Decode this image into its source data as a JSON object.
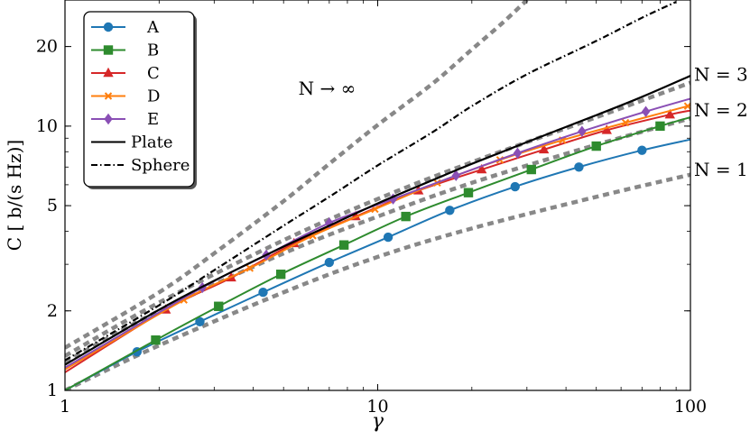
{
  "chart_data": {
    "type": "line",
    "xlabel": "γ",
    "ylabel": "C [ b/(s Hz)]",
    "xscale": "log",
    "yscale": "log",
    "xlim": [
      1,
      100
    ],
    "ylim": [
      1,
      30
    ],
    "x_ticks": [
      {
        "value": 1,
        "label": "1"
      },
      {
        "value": 10,
        "label": "10"
      },
      {
        "value": 100,
        "label": "100"
      }
    ],
    "y_ticks": [
      {
        "value": 1,
        "label": "1"
      },
      {
        "value": 2,
        "label": "2"
      },
      {
        "value": 5,
        "label": "5"
      },
      {
        "value": 10,
        "label": "10"
      },
      {
        "value": 20,
        "label": "20"
      }
    ],
    "legend_position": "top-left",
    "series": [
      {
        "name": "A",
        "color": "#1f77b4",
        "marker": "circle",
        "style": "solid",
        "x": [
          1,
          1.7,
          2.7,
          4.3,
          7,
          10.8,
          17,
          27.5,
          44,
          70,
          100
        ],
        "y": [
          1.0,
          1.4,
          1.82,
          2.35,
          3.05,
          3.8,
          4.8,
          5.9,
          7.0,
          8.1,
          8.9
        ]
      },
      {
        "name": "B",
        "color": "#2e8b2e",
        "marker": "square",
        "style": "solid",
        "x": [
          1,
          1.95,
          3.1,
          4.9,
          7.8,
          12.3,
          19.5,
          31,
          50,
          80,
          100
        ],
        "y": [
          1.0,
          1.55,
          2.08,
          2.75,
          3.55,
          4.55,
          5.6,
          6.85,
          8.4,
          10.0,
          10.8
        ]
      },
      {
        "name": "C",
        "color": "#d62728",
        "marker": "triangle",
        "style": "solid",
        "x": [
          1,
          2.1,
          3.4,
          5.4,
          8.5,
          13.5,
          21.5,
          34,
          54,
          86,
          100
        ],
        "y": [
          1.17,
          2.02,
          2.67,
          3.6,
          4.55,
          5.7,
          6.85,
          8.15,
          9.65,
          11.05,
          11.45
        ]
      },
      {
        "name": "D",
        "color": "#ff7f0e",
        "marker": "x",
        "style": "solid",
        "x": [
          1,
          2.4,
          3.9,
          6.2,
          9.8,
          15.5,
          24.6,
          39,
          62,
          98,
          100
        ],
        "y": [
          1.2,
          2.2,
          2.9,
          3.85,
          4.85,
          6.1,
          7.45,
          8.85,
          10.3,
          11.9,
          12.0
        ]
      },
      {
        "name": "E",
        "color": "#8a4fb5",
        "marker": "diamond",
        "style": "solid",
        "x": [
          1,
          2.75,
          4.4,
          7,
          11.2,
          17.8,
          28,
          45,
          72,
          100
        ],
        "y": [
          1.22,
          2.45,
          3.25,
          4.3,
          5.3,
          6.5,
          7.9,
          9.55,
          11.35,
          12.7
        ]
      },
      {
        "name": "Plate",
        "color": "#000000",
        "marker": "none",
        "style": "solid",
        "x": [
          1,
          2,
          3,
          5,
          7,
          10,
          15,
          20,
          30,
          50,
          70,
          100
        ],
        "y": [
          1.25,
          2.02,
          2.6,
          3.5,
          4.2,
          5.1,
          6.25,
          7.2,
          8.7,
          11.0,
          12.9,
          15.5
        ]
      },
      {
        "name": "Sphere",
        "color": "#000000",
        "marker": "none",
        "style": "dashdot",
        "x": [
          1,
          2,
          3,
          5,
          7,
          10,
          15,
          20,
          30,
          50,
          70,
          90
        ],
        "y": [
          1.3,
          2.1,
          2.85,
          4.2,
          5.4,
          7.1,
          9.5,
          11.9,
          15.7,
          21.0,
          25.7,
          29.5
        ]
      }
    ],
    "reference_curves": [
      {
        "label": "N = 1",
        "x": [
          1,
          2,
          5,
          10,
          20,
          50,
          100
        ],
        "y": [
          1.0,
          1.48,
          2.35,
          3.2,
          4.1,
          5.4,
          6.55
        ]
      },
      {
        "label": "N = 2",
        "x": [
          1,
          2,
          5,
          10,
          20,
          50,
          100
        ],
        "y": [
          1.28,
          2.0,
          3.3,
          4.55,
          6.1,
          8.5,
          10.7
        ]
      },
      {
        "label": "N = 3",
        "x": [
          1,
          2,
          5,
          10,
          20,
          50,
          100
        ],
        "y": [
          1.35,
          2.15,
          3.7,
          5.3,
          7.3,
          10.8,
          14.6
        ]
      },
      {
        "label": "N → ∞",
        "x": [
          1,
          2,
          3,
          5,
          7,
          10,
          15,
          20,
          25,
          30
        ],
        "y": [
          1.45,
          2.35,
          3.3,
          5.2,
          7.2,
          10.1,
          14.5,
          19.5,
          24.5,
          30.0
        ]
      }
    ],
    "annotations": [
      {
        "text": "N → ∞",
        "x": 9.0,
        "y": 14.0
      },
      {
        "text": "N = 3",
        "x": 100,
        "y": 15.6
      },
      {
        "text": "N = 2",
        "x": 100,
        "y": 11.4
      },
      {
        "text": "N = 1",
        "x": 100,
        "y": 6.8
      }
    ]
  }
}
